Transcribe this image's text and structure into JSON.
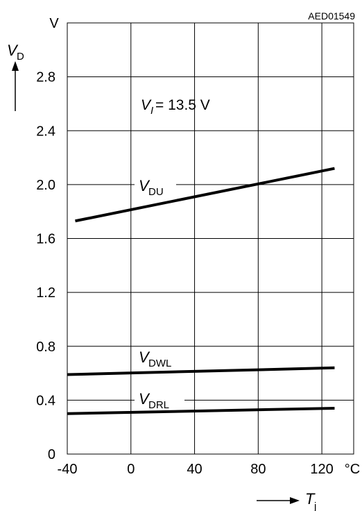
{
  "figure_code": "AED01549",
  "condition": {
    "symbol": "V",
    "sub": "I",
    "text": " = 13.5 V"
  },
  "y_axis": {
    "symbol": "V",
    "sub": "D",
    "unit": "V"
  },
  "x_axis": {
    "symbol": "T",
    "sub": "j",
    "unit": "°C"
  },
  "chart_data": {
    "type": "line",
    "x_ticks": [
      "-40",
      "0",
      "40",
      "80",
      "120"
    ],
    "y_ticks": [
      "0",
      "0.4",
      "0.8",
      "1.2",
      "1.6",
      "2.0",
      "2.4",
      "2.8"
    ],
    "xlim": [
      -40,
      140
    ],
    "ylim": [
      0,
      3.2
    ],
    "grid": true,
    "series": [
      {
        "name": "V_DU",
        "label": {
          "main": "V",
          "sub": "DU"
        },
        "x": [
          -35,
          128
        ],
        "y": [
          1.73,
          2.12
        ]
      },
      {
        "name": "V_DWL",
        "label": {
          "main": "V",
          "sub": "DWL"
        },
        "x": [
          -40,
          128
        ],
        "y": [
          0.59,
          0.64
        ]
      },
      {
        "name": "V_DRL",
        "label": {
          "main": "V",
          "sub": "DRL"
        },
        "x": [
          -40,
          128
        ],
        "y": [
          0.3,
          0.34
        ]
      }
    ]
  }
}
